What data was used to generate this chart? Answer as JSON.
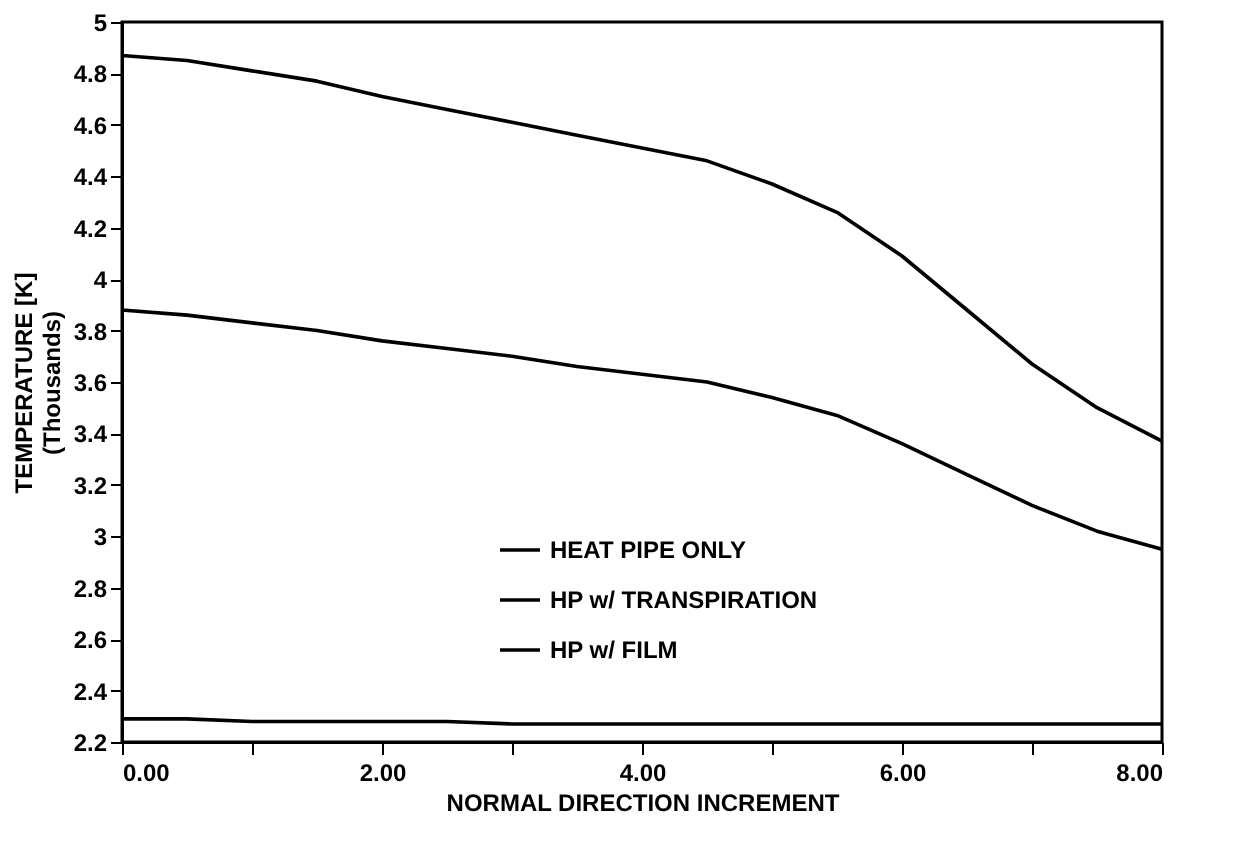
{
  "chart_data": {
    "type": "line",
    "xlabel": "NORMAL DIRECTION INCREMENT",
    "ylabel": "TEMPERATURE [K]\n(Thousands)",
    "x": [
      0,
      0.5,
      1,
      1.5,
      2,
      2.5,
      3,
      3.5,
      4,
      4.5,
      5,
      5.5,
      6,
      6.5,
      7,
      7.5,
      8
    ],
    "series": [
      {
        "name": "HEAT PIPE ONLY",
        "color": "#000000",
        "values": [
          4.87,
          4.85,
          4.81,
          4.77,
          4.71,
          4.66,
          4.61,
          4.56,
          4.51,
          4.46,
          4.37,
          4.26,
          4.09,
          3.88,
          3.67,
          3.5,
          3.37
        ]
      },
      {
        "name": "HP w/ TRANSPIRATION",
        "color": "#000000",
        "values": [
          3.88,
          3.86,
          3.83,
          3.8,
          3.76,
          3.73,
          3.7,
          3.66,
          3.63,
          3.6,
          3.54,
          3.47,
          3.36,
          3.24,
          3.12,
          3.02,
          2.95
        ]
      },
      {
        "name": "HP w/ FILM",
        "color": "#000000",
        "values": [
          2.29,
          2.29,
          2.28,
          2.28,
          2.28,
          2.28,
          2.27,
          2.27,
          2.27,
          2.27,
          2.27,
          2.27,
          2.27,
          2.27,
          2.27,
          2.27,
          2.27
        ]
      }
    ],
    "xlim": [
      0,
      8
    ],
    "xticks": [
      {
        "value": 0,
        "label": "0.00"
      },
      {
        "value": 1,
        "label": null
      },
      {
        "value": 2,
        "label": "2.00"
      },
      {
        "value": 3,
        "label": null
      },
      {
        "value": 4,
        "label": "4.00"
      },
      {
        "value": 5,
        "label": null
      },
      {
        "value": 6,
        "label": "6.00"
      },
      {
        "value": 7,
        "label": null
      },
      {
        "value": 8,
        "label": "8.00"
      }
    ],
    "ylim": [
      2.2,
      5
    ],
    "yticks": [
      2.2,
      2.4,
      2.6,
      2.8,
      3,
      3.2,
      3.4,
      3.6,
      3.8,
      4,
      4.2,
      4.4,
      4.6,
      4.8,
      5
    ],
    "grid": false,
    "legend": "bottom",
    "marker": "none",
    "line_style": "solid"
  }
}
